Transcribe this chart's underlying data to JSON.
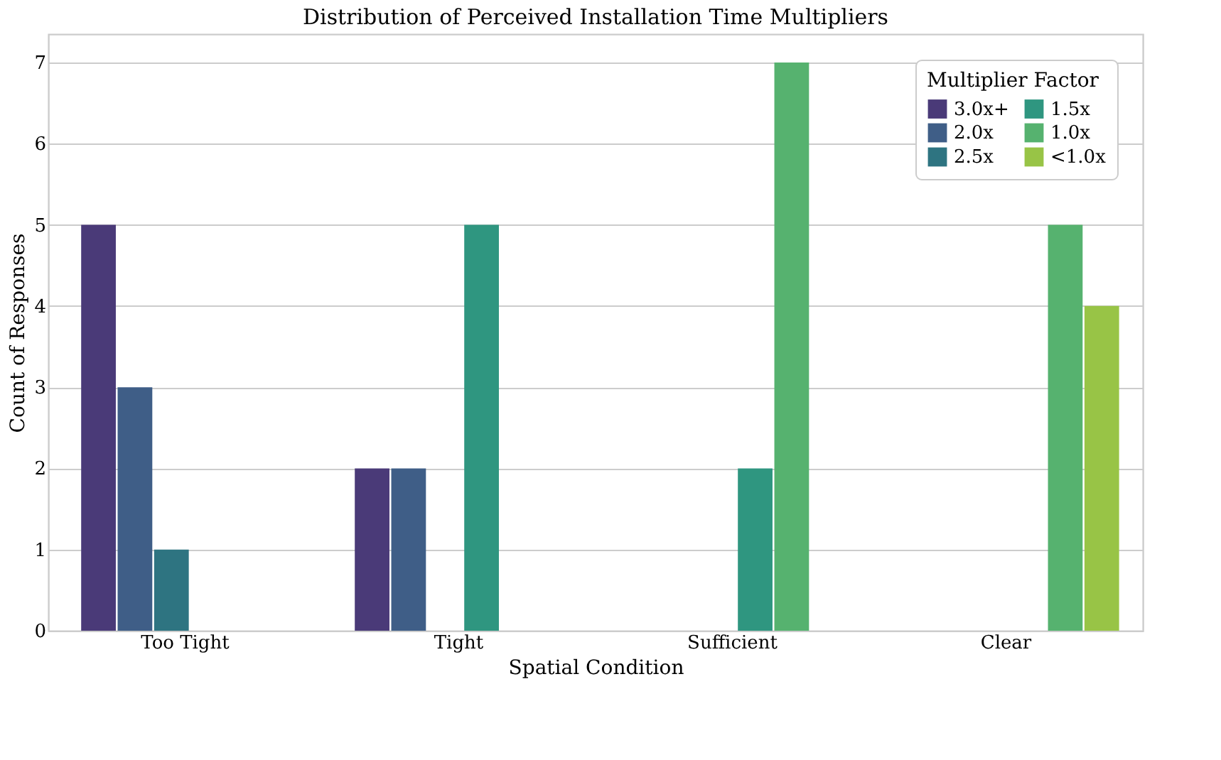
{
  "chart_data": {
    "type": "bar",
    "title": "Distribution of Perceived Installation Time Multipliers",
    "xlabel": "Spatial Condition",
    "ylabel": "Count of Responses",
    "legend_title": "Multiplier Factor",
    "categories": [
      "Too Tight",
      "Tight",
      "Sufficient",
      "Clear"
    ],
    "series": [
      {
        "name": "3.0x+",
        "color": "#4a3a78",
        "values": [
          5,
          2,
          null,
          null
        ]
      },
      {
        "name": "2.0x",
        "color": "#3f5e87",
        "values": [
          3,
          2,
          null,
          null
        ]
      },
      {
        "name": "2.5x",
        "color": "#2e7481",
        "values": [
          1,
          null,
          null,
          null
        ]
      },
      {
        "name": "1.5x",
        "color": "#2f9680",
        "values": [
          null,
          5,
          2,
          null
        ]
      },
      {
        "name": "1.0x",
        "color": "#56b26f",
        "values": [
          null,
          null,
          7,
          5
        ]
      },
      {
        "name": "<1.0x",
        "color": "#98c446",
        "values": [
          null,
          null,
          null,
          4
        ]
      }
    ],
    "ylim": [
      0,
      7.35
    ],
    "yticks": [
      0,
      1,
      2,
      3,
      4,
      5,
      6,
      7
    ],
    "grid": "y",
    "legend": "top right"
  }
}
